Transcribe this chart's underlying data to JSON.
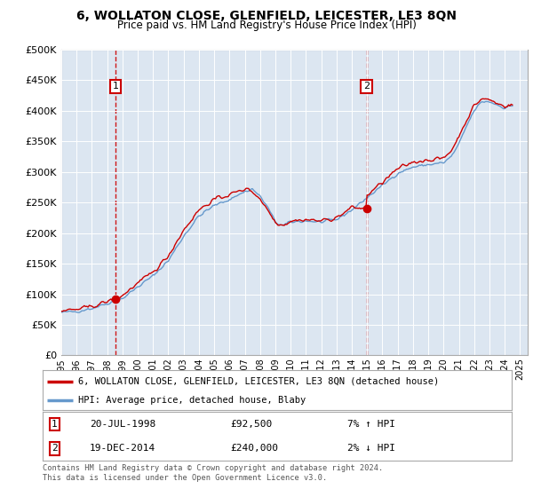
{
  "title": "6, WOLLATON CLOSE, GLENFIELD, LEICESTER, LE3 8QN",
  "subtitle": "Price paid vs. HM Land Registry's House Price Index (HPI)",
  "ylim": [
    0,
    500000
  ],
  "yticks": [
    0,
    50000,
    100000,
    150000,
    200000,
    250000,
    300000,
    350000,
    400000,
    450000,
    500000
  ],
  "ytick_labels": [
    "£0",
    "£50K",
    "£100K",
    "£150K",
    "£200K",
    "£250K",
    "£300K",
    "£350K",
    "£400K",
    "£450K",
    "£500K"
  ],
  "xlim_start": 1995.0,
  "xlim_end": 2025.5,
  "xtick_years": [
    1995,
    1996,
    1997,
    1998,
    1999,
    2000,
    2001,
    2002,
    2003,
    2004,
    2005,
    2006,
    2007,
    2008,
    2009,
    2010,
    2011,
    2012,
    2013,
    2014,
    2015,
    2016,
    2017,
    2018,
    2019,
    2020,
    2021,
    2022,
    2023,
    2024,
    2025
  ],
  "red_line_color": "#cc0000",
  "blue_line_color": "#6699cc",
  "point1_x": 1998.55,
  "point1_y": 92500,
  "point2_x": 2014.97,
  "point2_y": 240000,
  "sale1_date": "20-JUL-1998",
  "sale1_price": "£92,500",
  "sale1_hpi": "7% ↑ HPI",
  "sale2_date": "19-DEC-2014",
  "sale2_price": "£240,000",
  "sale2_hpi": "2% ↓ HPI",
  "legend_line1": "6, WOLLATON CLOSE, GLENFIELD, LEICESTER, LE3 8QN (detached house)",
  "legend_line2": "HPI: Average price, detached house, Blaby",
  "footer1": "Contains HM Land Registry data © Crown copyright and database right 2024.",
  "footer2": "This data is licensed under the Open Government Licence v3.0.",
  "bg_color": "#dce6f1",
  "fig_bg_color": "#ffffff"
}
